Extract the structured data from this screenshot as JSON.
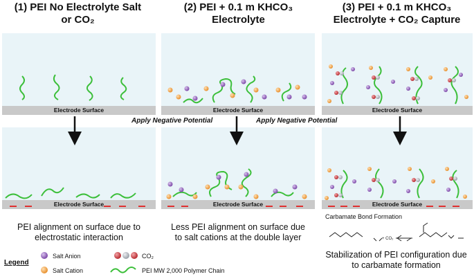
{
  "titles": [
    "(1)  PEI No Electrolyte Salt\nor CO₂",
    "(2)  PEI + 0.1 m KHCO₃\nElectrolyte",
    "(3)  PEI + 0.1 m KHCO₃\nElectrolyte + CO₂ Capture"
  ],
  "surface_label": "Electrode Surface",
  "apply_label": "Apply Negative Potential",
  "captions": [
    "PEI alignment on surface due to\nelectrostatic interaction",
    "Less PEI alignment on surface due\nto salt cations at the double layer",
    "Stabilization of PEI configuration due\nto carbamate formation"
  ],
  "carbamate_title": "Carbamate Bond Formation",
  "chem": {
    "plus_co2": "+ CO₂"
  },
  "legend": {
    "title": "Legend",
    "salt_anion": "Salt Anion",
    "salt_cation": "Salt Cation",
    "co2": "CO₂",
    "polymer": "PEI MW 2,000 Polymer Chain"
  },
  "colors": {
    "polymer": "#3cbf3a",
    "anion": "#8d5bb5",
    "cation": "#f0a24a",
    "co2_red": "#c9353a",
    "co2_grey": "#b7bcc4",
    "panel_bg": "#e9f4f8",
    "charge": "#e03030"
  }
}
